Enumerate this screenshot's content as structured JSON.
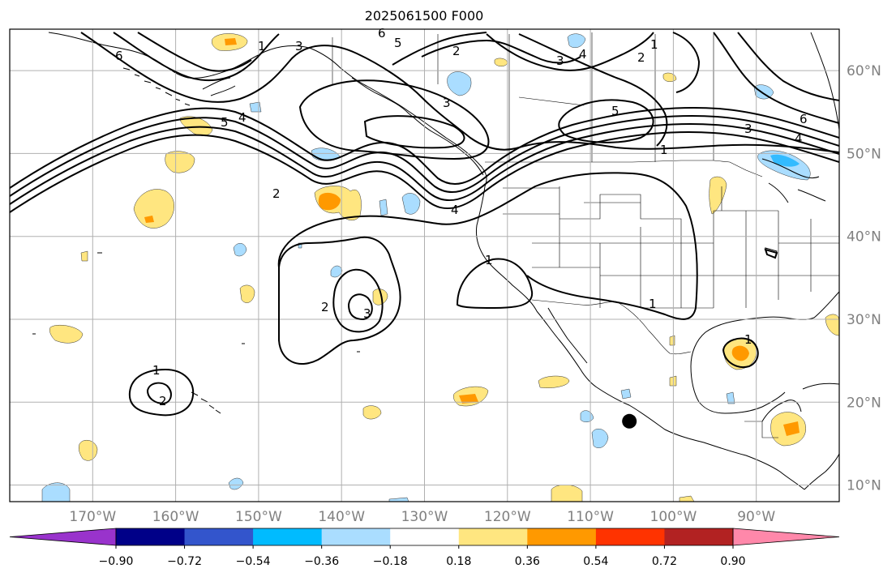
{
  "title": "2025061500 F000",
  "map": {
    "lon_labels": [
      "170°W",
      "160°W",
      "150°W",
      "140°W",
      "130°W",
      "120°W",
      "110°W",
      "100°W",
      "90°W"
    ],
    "lat_labels": [
      "60°N",
      "50°N",
      "40°N",
      "30°N",
      "20°N",
      "10°N"
    ],
    "extent": {
      "lon_min": -180,
      "lon_max": -80,
      "lat_min": 8,
      "lat_max": 65
    },
    "contour_labels": [
      "1",
      "2",
      "3",
      "4",
      "5",
      "6"
    ],
    "marker": {
      "lon": -105.3,
      "lat": 17.7
    }
  },
  "colorbar": {
    "tick_labels": [
      "−0.90",
      "−0.72",
      "−0.54",
      "−0.36",
      "−0.18",
      "0.18",
      "0.36",
      "0.54",
      "0.72",
      "0.90"
    ],
    "colors": [
      "#9933cc",
      "#000088",
      "#3355cc",
      "#00bbff",
      "#aaddff",
      "#ffffff",
      "#ffe680",
      "#ff9900",
      "#ff3300",
      "#b22222",
      "#ff88aa"
    ],
    "under_color": "#9933cc",
    "over_color": "#ff88aa"
  },
  "colors": {
    "positive_light": "#ffe680",
    "positive_mid": "#ffaa00",
    "positive_strong": "#ff8800",
    "negative_light": "#aaddff",
    "negative_mid": "#33bbff",
    "contour": "#000000",
    "grid": "#b0b0b0"
  }
}
